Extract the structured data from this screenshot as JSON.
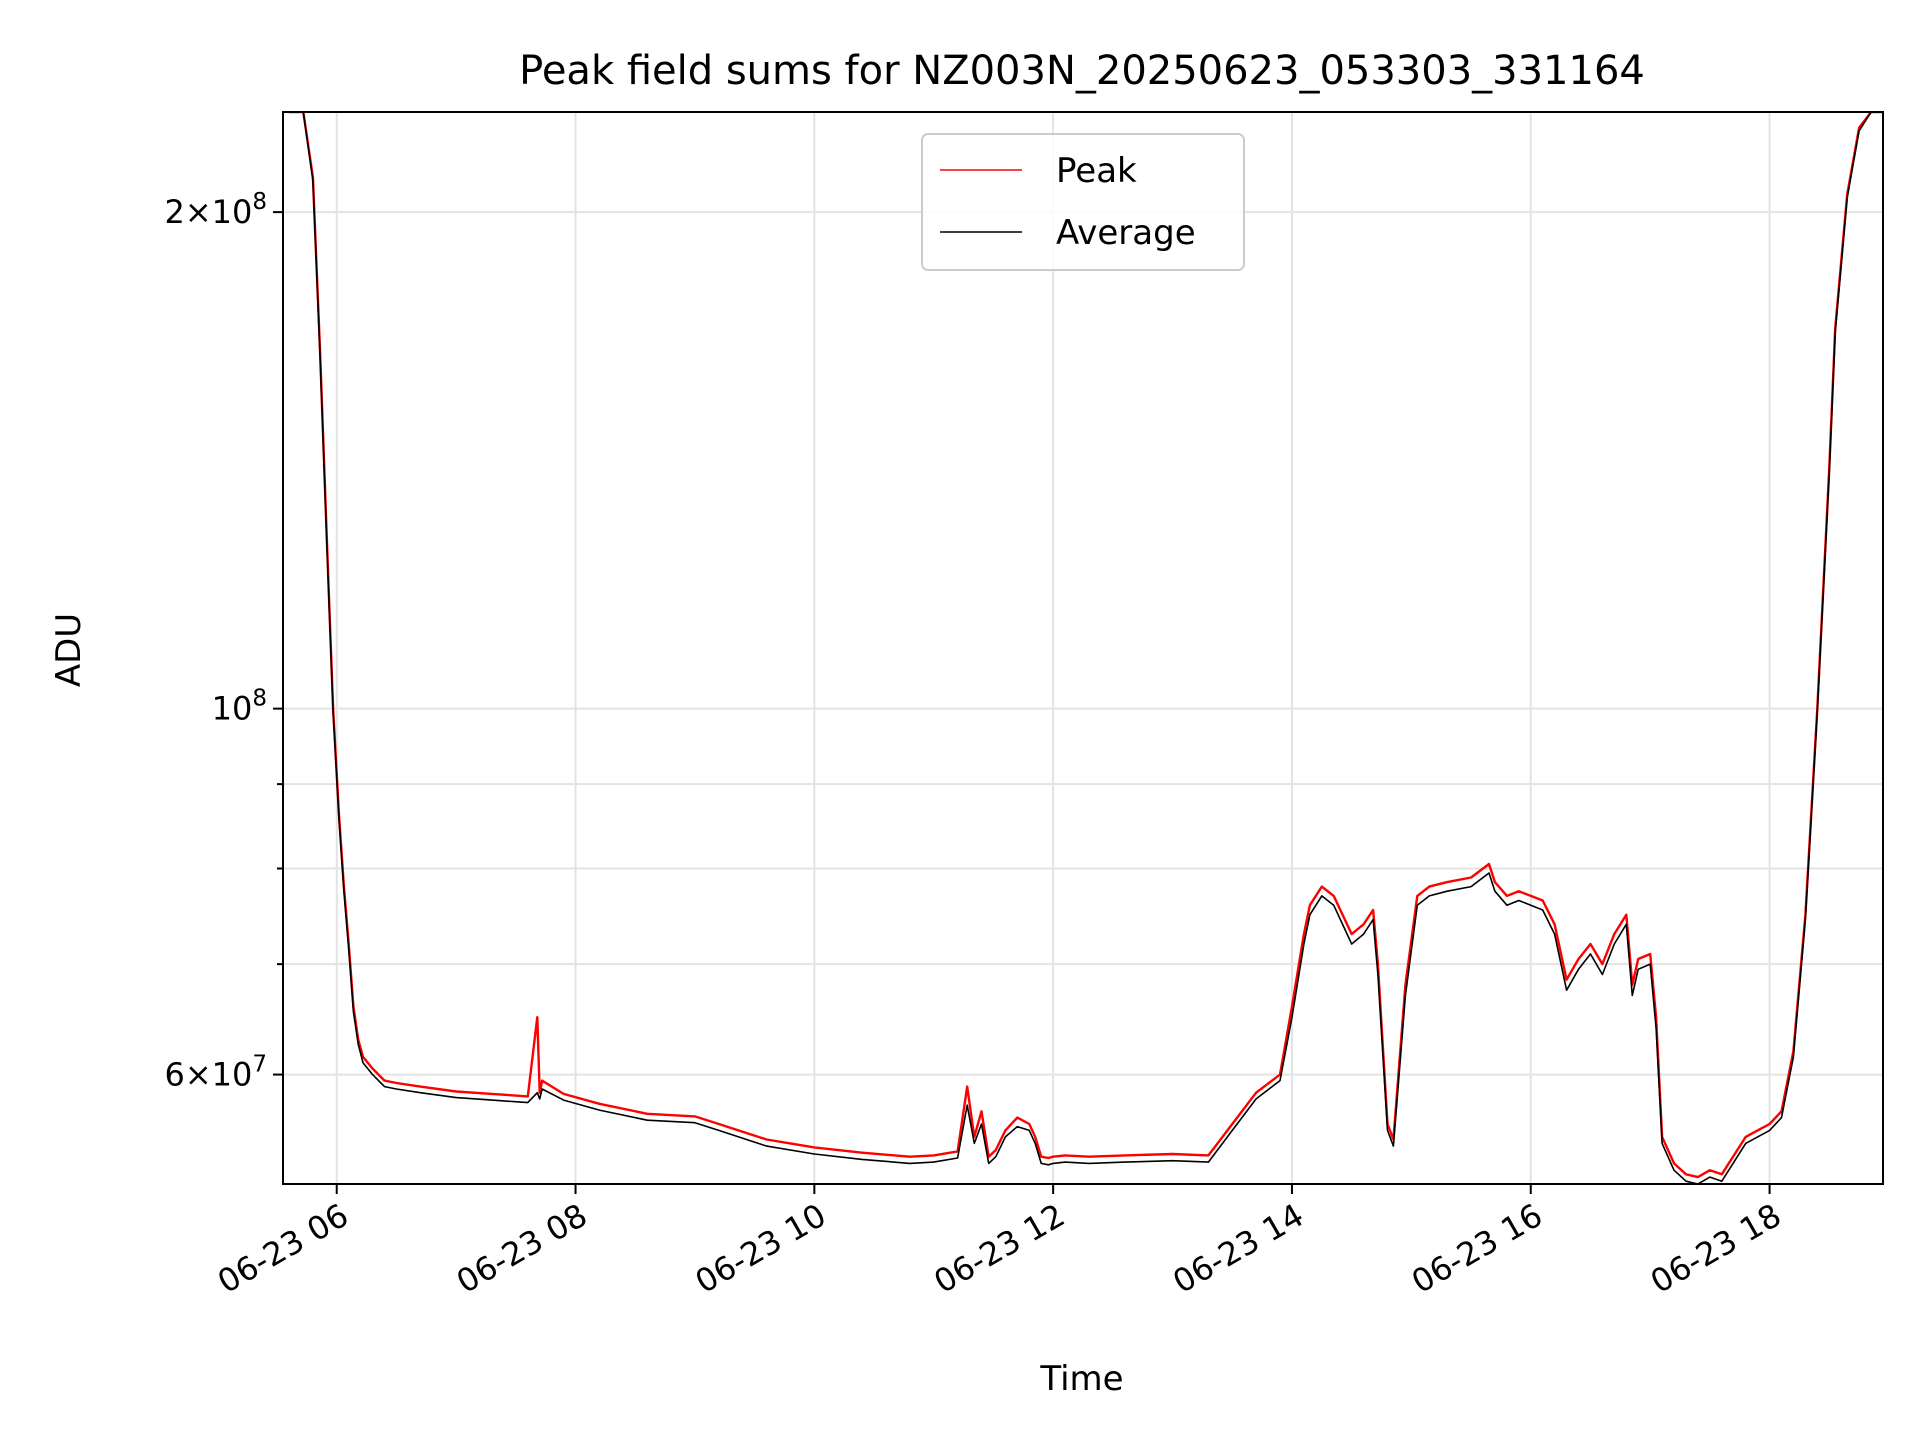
{
  "chart_data": {
    "type": "line",
    "title": "Peak field sums for NZ003N_20250623_053303_331164",
    "xlabel": "Time",
    "ylabel": "ADU",
    "y_scale": "log",
    "x_range_hours": [
      5.55,
      18.95
    ],
    "ylim": [
      51500000,
      230000000
    ],
    "grid": true,
    "legend_position": "top-center",
    "x_ticks": [
      {
        "value": 6,
        "label": "06-23 06"
      },
      {
        "value": 8,
        "label": "06-23 08"
      },
      {
        "value": 10,
        "label": "06-23 10"
      },
      {
        "value": 12,
        "label": "06-23 12"
      },
      {
        "value": 14,
        "label": "06-23 14"
      },
      {
        "value": 16,
        "label": "06-23 16"
      },
      {
        "value": 18,
        "label": "06-23 18"
      }
    ],
    "y_major_ticks": [
      {
        "value": 60000000,
        "mantissa": "6",
        "exponent": "7"
      },
      {
        "value": 100000000,
        "mantissa": "",
        "exponent": "8"
      },
      {
        "value": 200000000,
        "mantissa": "2",
        "exponent": "8"
      }
    ],
    "y_minor_ticks": [
      70000000,
      80000000,
      90000000
    ],
    "series": [
      {
        "name": "Peak",
        "color": "#ff0000",
        "x": [
          5.6,
          5.72,
          5.8,
          5.86,
          5.92,
          5.97,
          6.02,
          6.06,
          6.1,
          6.14,
          6.18,
          6.22,
          6.3,
          6.4,
          6.5,
          6.7,
          7.0,
          7.3,
          7.6,
          7.68,
          7.7,
          7.72,
          7.9,
          8.2,
          8.6,
          9.0,
          9.2,
          9.6,
          10.0,
          10.4,
          10.8,
          11.0,
          11.2,
          11.28,
          11.34,
          11.4,
          11.46,
          11.52,
          11.6,
          11.7,
          11.8,
          11.85,
          11.9,
          11.96,
          12.0,
          12.1,
          12.3,
          12.6,
          13.0,
          13.3,
          13.5,
          13.7,
          13.9,
          14.0,
          14.1,
          14.15,
          14.25,
          14.35,
          14.5,
          14.6,
          14.68,
          14.72,
          14.8,
          14.85,
          14.95,
          15.05,
          15.15,
          15.3,
          15.5,
          15.65,
          15.7,
          15.8,
          15.9,
          16.0,
          16.1,
          16.2,
          16.3,
          16.4,
          16.5,
          16.6,
          16.7,
          16.8,
          16.85,
          16.9,
          17.0,
          17.05,
          17.1,
          17.2,
          17.3,
          17.4,
          17.5,
          17.6,
          17.8,
          17.9,
          18.0,
          18.1,
          18.2,
          18.3,
          18.4,
          18.5,
          18.55,
          18.65,
          18.75,
          18.85,
          18.95
        ],
        "values": [
          230000000,
          230000000,
          210000000,
          165000000,
          125000000,
          100000000,
          86000000,
          78000000,
          72000000,
          66000000,
          63000000,
          61500000,
          60500000,
          59500000,
          59300000,
          59000000,
          58600000,
          58400000,
          58200000,
          65000000,
          58500000,
          59500000,
          58400000,
          57600000,
          56800000,
          56600000,
          56000000,
          54800000,
          54200000,
          53800000,
          53500000,
          53600000,
          53900000,
          59000000,
          55000000,
          57000000,
          53500000,
          54000000,
          55500000,
          56500000,
          56000000,
          55000000,
          53500000,
          53400000,
          53500000,
          53600000,
          53500000,
          53600000,
          53700000,
          53600000,
          56000000,
          58500000,
          60000000,
          66000000,
          73000000,
          76000000,
          78000000,
          77000000,
          73000000,
          74000000,
          75500000,
          70000000,
          56000000,
          54800000,
          68000000,
          77000000,
          78000000,
          78500000,
          79000000,
          80500000,
          78500000,
          77000000,
          77500000,
          77000000,
          76500000,
          74000000,
          68500000,
          70500000,
          72000000,
          70000000,
          73000000,
          75000000,
          68000000,
          70500000,
          71000000,
          65000000,
          55000000,
          53000000,
          52200000,
          52000000,
          52500000,
          52200000,
          55000000,
          55500000,
          56000000,
          57000000,
          62000000,
          75000000,
          100000000,
          140000000,
          170000000,
          205000000,
          225000000,
          230000000,
          230000000
        ]
      },
      {
        "name": "Average",
        "color": "#000000",
        "x": [
          5.6,
          5.72,
          5.8,
          5.86,
          5.92,
          5.97,
          6.02,
          6.06,
          6.1,
          6.14,
          6.18,
          6.22,
          6.3,
          6.4,
          6.5,
          6.7,
          7.0,
          7.3,
          7.6,
          7.68,
          7.7,
          7.72,
          7.9,
          8.2,
          8.6,
          9.0,
          9.2,
          9.6,
          10.0,
          10.4,
          10.8,
          11.0,
          11.2,
          11.28,
          11.34,
          11.4,
          11.46,
          11.52,
          11.6,
          11.7,
          11.8,
          11.85,
          11.9,
          11.96,
          12.0,
          12.1,
          12.3,
          12.6,
          13.0,
          13.3,
          13.5,
          13.7,
          13.9,
          14.0,
          14.1,
          14.15,
          14.25,
          14.35,
          14.5,
          14.6,
          14.68,
          14.72,
          14.8,
          14.85,
          14.95,
          15.05,
          15.15,
          15.3,
          15.5,
          15.65,
          15.7,
          15.8,
          15.9,
          16.0,
          16.1,
          16.2,
          16.3,
          16.4,
          16.5,
          16.6,
          16.7,
          16.8,
          16.85,
          16.9,
          17.0,
          17.05,
          17.1,
          17.2,
          17.3,
          17.4,
          17.5,
          17.6,
          17.8,
          17.9,
          18.0,
          18.1,
          18.2,
          18.3,
          18.4,
          18.5,
          18.55,
          18.65,
          18.75,
          18.85,
          18.95
        ],
        "values": [
          230000000,
          230000000,
          209000000,
          164000000,
          124000000,
          99500000,
          85500000,
          77500000,
          71500000,
          65500000,
          62600000,
          61000000,
          60000000,
          59000000,
          58800000,
          58500000,
          58100000,
          57900000,
          57700000,
          58500000,
          58000000,
          58800000,
          57900000,
          57100000,
          56300000,
          56100000,
          55500000,
          54300000,
          53700000,
          53300000,
          53000000,
          53100000,
          53400000,
          57500000,
          54500000,
          56000000,
          53000000,
          53500000,
          55000000,
          55800000,
          55500000,
          54500000,
          53000000,
          52900000,
          53000000,
          53100000,
          53000000,
          53100000,
          53200000,
          53100000,
          55500000,
          58000000,
          59500000,
          65000000,
          72000000,
          75000000,
          77000000,
          76000000,
          72000000,
          73000000,
          74500000,
          69000000,
          55500000,
          54300000,
          67000000,
          76000000,
          77000000,
          77500000,
          78000000,
          79500000,
          77500000,
          76000000,
          76500000,
          76000000,
          75500000,
          73000000,
          67500000,
          69500000,
          71000000,
          69000000,
          72000000,
          74000000,
          67000000,
          69500000,
          70000000,
          64000000,
          54500000,
          52500000,
          51700000,
          51500000,
          52000000,
          51700000,
          54500000,
          55000000,
          55500000,
          56500000,
          61500000,
          74500000,
          99500000,
          139000000,
          169000000,
          204000000,
          224000000,
          230000000,
          230000000
        ]
      }
    ]
  }
}
